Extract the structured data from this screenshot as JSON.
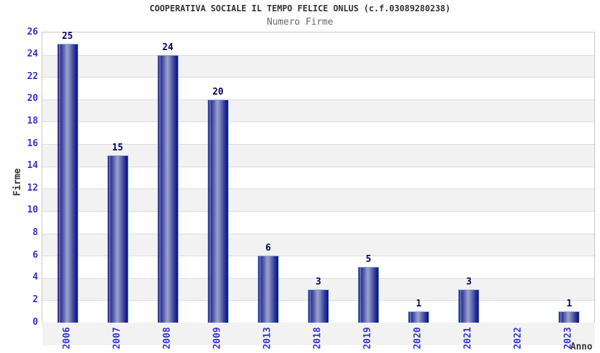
{
  "header": {
    "title": "COOPERATIVA SOCIALE IL TEMPO FELICE ONLUS (c.f.03089280238)",
    "subtitle": "Numero Firme"
  },
  "chart_data": {
    "type": "bar",
    "title": "COOPERATIVA SOCIALE IL TEMPO FELICE ONLUS (c.f.03089280238)",
    "subtitle": "Numero Firme",
    "categories": [
      "2006",
      "2007",
      "2008",
      "2009",
      "2013",
      "2018",
      "2019",
      "2020",
      "2021",
      "2022",
      "2023"
    ],
    "values": [
      25,
      15,
      24,
      20,
      6,
      3,
      5,
      1,
      3,
      0,
      1
    ],
    "xlabel": "Anno",
    "ylabel": "Firme",
    "ylim": [
      0,
      26
    ],
    "ytick_step": 2,
    "yticks": [
      0,
      2,
      4,
      6,
      8,
      10,
      12,
      14,
      16,
      18,
      20,
      22,
      24,
      26
    ],
    "grid": true,
    "legend": "none",
    "band_fill": "alternating gray stripes every 2 units",
    "colors": {
      "bar_dark": "#0e0e74",
      "bar_light": "#9aa2cb",
      "bar_border": "#7fb2e0",
      "tick_label": "#3232cd",
      "value_label": "#000060",
      "band_gray": "#f2f2f2",
      "grid_line": "#dcdcdc",
      "axis_border": "#c9c9c9",
      "title_color": "#333333",
      "subtitle_color": "#666666"
    }
  }
}
